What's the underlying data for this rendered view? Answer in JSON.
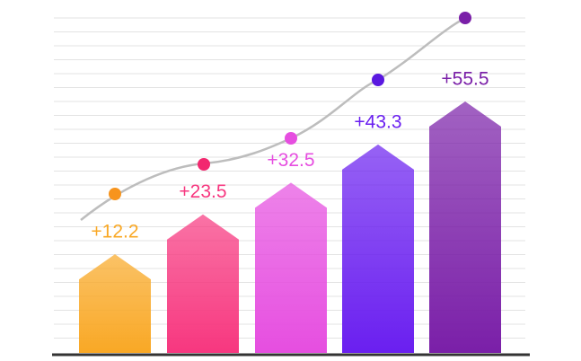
{
  "chart_data": {
    "type": "bar",
    "values": [
      12.2,
      23.5,
      32.5,
      43.3,
      55.5
    ],
    "value_labels": [
      "+12.2",
      "+23.5",
      "+32.5",
      "+43.3",
      "+55.5"
    ],
    "colors": [
      "#f9a825",
      "#f7377f",
      "#e64ee0",
      "#6a1ff0",
      "#7a1fa8"
    ]
  }
}
